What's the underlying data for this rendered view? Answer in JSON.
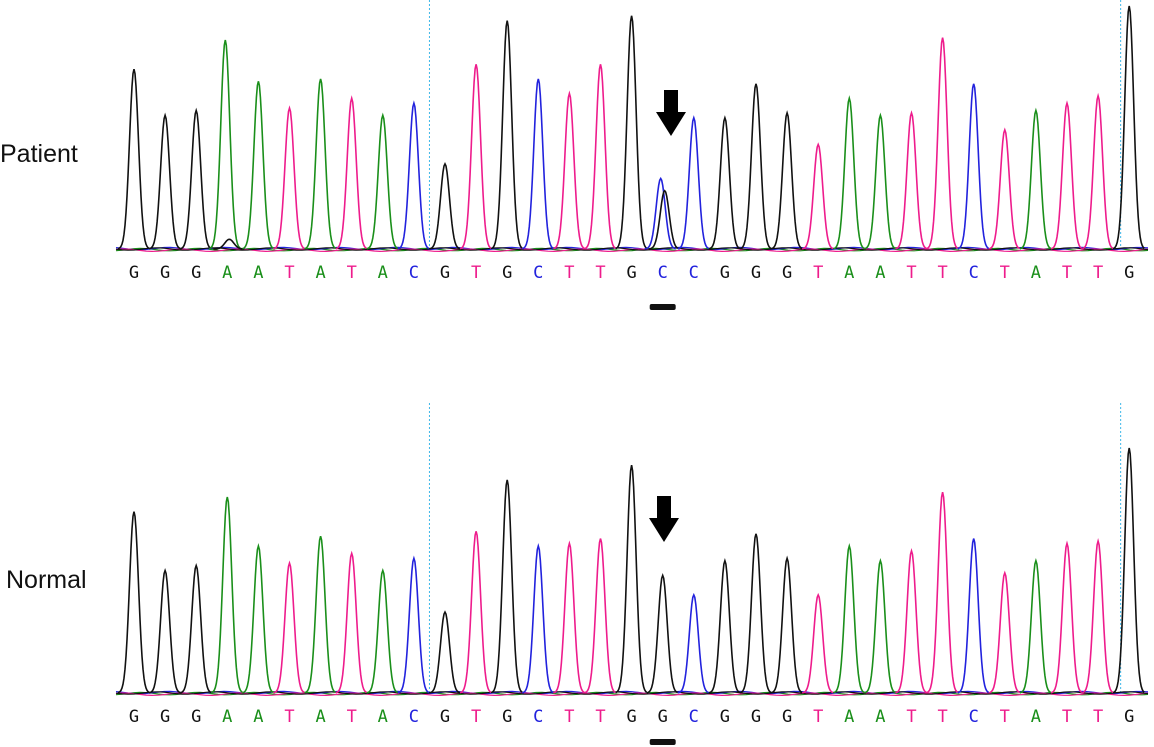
{
  "panels": [
    {
      "label": "Patient",
      "sequence": [
        "G",
        "G",
        "G",
        "A",
        "A",
        "T",
        "A",
        "T",
        "A",
        "C",
        "G",
        "T",
        "G",
        "C",
        "T",
        "T",
        "G",
        "C",
        "C",
        "G",
        "G",
        "G",
        "T",
        "A",
        "A",
        "T",
        "T",
        "C",
        "T",
        "A",
        "T",
        "T",
        "G"
      ],
      "peaks": [
        [
          {
            "b": "G",
            "h": 0.74
          }
        ],
        [
          {
            "b": "G",
            "h": 0.55
          }
        ],
        [
          {
            "b": "G",
            "h": 0.57
          }
        ],
        [
          {
            "b": "A",
            "h": 0.86
          },
          {
            "b": "G",
            "h": 0.04
          }
        ],
        [
          {
            "b": "A",
            "h": 0.69
          }
        ],
        [
          {
            "b": "T",
            "h": 0.58
          }
        ],
        [
          {
            "b": "A",
            "h": 0.7
          }
        ],
        [
          {
            "b": "T",
            "h": 0.62
          }
        ],
        [
          {
            "b": "A",
            "h": 0.55
          }
        ],
        [
          {
            "b": "C",
            "h": 0.6
          }
        ],
        [
          {
            "b": "G",
            "h": 0.35
          }
        ],
        [
          {
            "b": "T",
            "h": 0.76
          }
        ],
        [
          {
            "b": "G",
            "h": 0.94
          }
        ],
        [
          {
            "b": "C",
            "h": 0.7
          }
        ],
        [
          {
            "b": "T",
            "h": 0.64
          }
        ],
        [
          {
            "b": "T",
            "h": 0.76
          }
        ],
        [
          {
            "b": "G",
            "h": 0.96
          }
        ],
        [
          {
            "b": "C",
            "h": 0.29
          },
          {
            "b": "G",
            "h": 0.24
          }
        ],
        [
          {
            "b": "C",
            "h": 0.54
          }
        ],
        [
          {
            "b": "G",
            "h": 0.54
          }
        ],
        [
          {
            "b": "G",
            "h": 0.68
          }
        ],
        [
          {
            "b": "G",
            "h": 0.56
          }
        ],
        [
          {
            "b": "T",
            "h": 0.43
          }
        ],
        [
          {
            "b": "A",
            "h": 0.62
          }
        ],
        [
          {
            "b": "A",
            "h": 0.55
          }
        ],
        [
          {
            "b": "T",
            "h": 0.56
          }
        ],
        [
          {
            "b": "T",
            "h": 0.87
          }
        ],
        [
          {
            "b": "C",
            "h": 0.68
          }
        ],
        [
          {
            "b": "T",
            "h": 0.49
          }
        ],
        [
          {
            "b": "A",
            "h": 0.57
          }
        ],
        [
          {
            "b": "T",
            "h": 0.6
          }
        ],
        [
          {
            "b": "T",
            "h": 0.63
          }
        ],
        [
          {
            "b": "G",
            "h": 1.0
          }
        ]
      ]
    },
    {
      "label": "Normal",
      "sequence": [
        "G",
        "G",
        "G",
        "A",
        "A",
        "T",
        "A",
        "T",
        "A",
        "C",
        "G",
        "T",
        "G",
        "C",
        "T",
        "T",
        "G",
        "G",
        "C",
        "G",
        "G",
        "G",
        "T",
        "A",
        "A",
        "T",
        "T",
        "C",
        "T",
        "A",
        "T",
        "T",
        "G"
      ],
      "peaks": [
        [
          {
            "b": "G",
            "h": 0.74
          }
        ],
        [
          {
            "b": "G",
            "h": 0.5
          }
        ],
        [
          {
            "b": "G",
            "h": 0.52
          }
        ],
        [
          {
            "b": "A",
            "h": 0.8
          }
        ],
        [
          {
            "b": "A",
            "h": 0.6
          }
        ],
        [
          {
            "b": "T",
            "h": 0.53
          }
        ],
        [
          {
            "b": "A",
            "h": 0.64
          }
        ],
        [
          {
            "b": "T",
            "h": 0.57
          }
        ],
        [
          {
            "b": "A",
            "h": 0.5
          }
        ],
        [
          {
            "b": "C",
            "h": 0.55
          }
        ],
        [
          {
            "b": "G",
            "h": 0.33
          }
        ],
        [
          {
            "b": "T",
            "h": 0.66
          }
        ],
        [
          {
            "b": "G",
            "h": 0.87
          }
        ],
        [
          {
            "b": "C",
            "h": 0.6
          }
        ],
        [
          {
            "b": "T",
            "h": 0.61
          }
        ],
        [
          {
            "b": "T",
            "h": 0.63
          }
        ],
        [
          {
            "b": "G",
            "h": 0.93
          }
        ],
        [
          {
            "b": "G",
            "h": 0.48
          }
        ],
        [
          {
            "b": "C",
            "h": 0.4
          }
        ],
        [
          {
            "b": "G",
            "h": 0.54
          }
        ],
        [
          {
            "b": "G",
            "h": 0.65
          }
        ],
        [
          {
            "b": "G",
            "h": 0.55
          }
        ],
        [
          {
            "b": "T",
            "h": 0.4
          }
        ],
        [
          {
            "b": "A",
            "h": 0.6
          }
        ],
        [
          {
            "b": "A",
            "h": 0.54
          }
        ],
        [
          {
            "b": "T",
            "h": 0.58
          }
        ],
        [
          {
            "b": "T",
            "h": 0.82
          }
        ],
        [
          {
            "b": "C",
            "h": 0.63
          }
        ],
        [
          {
            "b": "T",
            "h": 0.49
          }
        ],
        [
          {
            "b": "A",
            "h": 0.54
          }
        ],
        [
          {
            "b": "T",
            "h": 0.61
          }
        ],
        [
          {
            "b": "T",
            "h": 0.62
          }
        ],
        [
          {
            "b": "G",
            "h": 1.0
          }
        ]
      ]
    }
  ],
  "highlight_position": 17,
  "marker_positions": [
    10,
    32
  ],
  "base_colors": {
    "A": "#1a8f1a",
    "C": "#2222dd",
    "G": "#111111",
    "T": "#ee1c8c"
  },
  "marker_color": "#3fb7e8"
}
